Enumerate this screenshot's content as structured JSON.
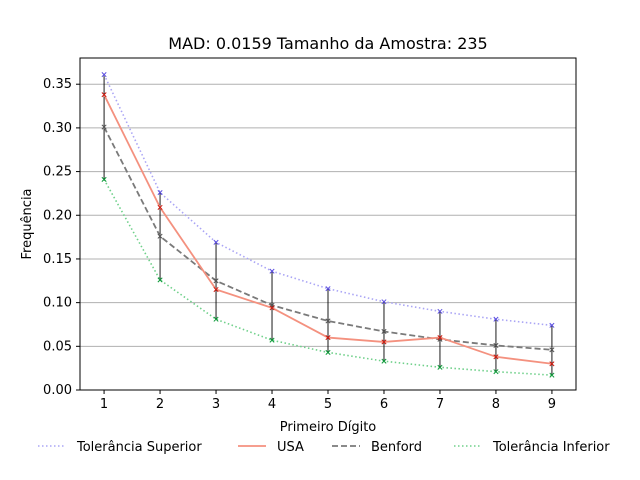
{
  "chart_data": {
    "type": "line",
    "title": "MAD: 0.0159 Tamanho da Amostra: 235",
    "xlabel": "Primeiro Dígito",
    "ylabel": "Frequência",
    "x": [
      1,
      2,
      3,
      4,
      5,
      6,
      7,
      8,
      9
    ],
    "xlim": [
      0.57,
      9.43
    ],
    "ylim": [
      0.0,
      0.38
    ],
    "yticks": [
      0.0,
      0.05,
      0.1,
      0.15,
      0.2,
      0.25,
      0.3,
      0.35
    ],
    "ytick_labels": [
      "0.00",
      "0.05",
      "0.10",
      "0.15",
      "0.20",
      "0.25",
      "0.30",
      "0.35"
    ],
    "xtick_labels": [
      "1",
      "2",
      "3",
      "4",
      "5",
      "6",
      "7",
      "8",
      "9"
    ],
    "grid": "horizontal",
    "legend_placement": "bottom",
    "series": [
      {
        "key": "upper",
        "name": "Tolerância Superior",
        "color": "#aaa5f5",
        "marker_color": "#5b4ee0",
        "dash": "dotted",
        "values": [
          0.361,
          0.226,
          0.169,
          0.136,
          0.116,
          0.101,
          0.09,
          0.081,
          0.074
        ]
      },
      {
        "key": "usa",
        "name": "USA",
        "color": "#f4917f",
        "marker_color": "#cc1a10",
        "dash": "solid",
        "values": [
          0.338,
          0.209,
          0.115,
          0.094,
          0.06,
          0.055,
          0.06,
          0.038,
          0.03
        ]
      },
      {
        "key": "benford",
        "name": "Benford",
        "color": "#7a7a7a",
        "marker_color": "#555555",
        "dash": "dashed",
        "values": [
          0.301,
          0.176,
          0.125,
          0.097,
          0.079,
          0.067,
          0.058,
          0.051,
          0.046
        ]
      },
      {
        "key": "lower",
        "name": "Tolerância Inferior",
        "color": "#6fd08a",
        "marker_color": "#0e9a3a",
        "dash": "dotted",
        "values": [
          0.241,
          0.126,
          0.081,
          0.057,
          0.043,
          0.033,
          0.026,
          0.021,
          0.017
        ]
      }
    ]
  }
}
